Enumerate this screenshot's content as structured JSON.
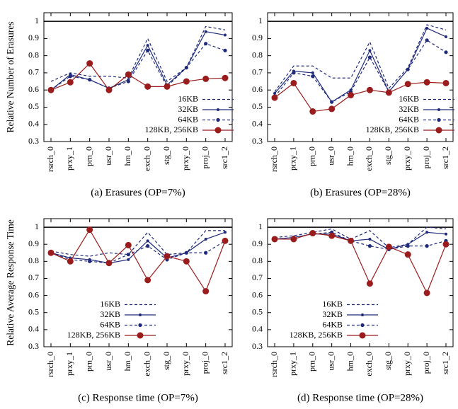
{
  "chart_data": [
    {
      "type": "line",
      "title": "(a)  Erasures (OP=7%)",
      "ylabel": "Relative Number of Erasures",
      "categories": [
        "rsrch_0",
        "prxy_1",
        "prn_0",
        "usr_0",
        "hm_0",
        "exch_0",
        "stg_0",
        "prxy_0",
        "proj_0",
        "src1_2"
      ],
      "series": [
        {
          "name": "16KB",
          "color": "#1f2a7a",
          "line_style": "dashed",
          "marker": "none",
          "values": [
            0.65,
            0.7,
            0.68,
            0.68,
            0.67,
            0.9,
            0.65,
            0.73,
            0.97,
            0.95
          ]
        },
        {
          "name": "32KB",
          "color": "#1f2a7a",
          "line_style": "solid",
          "marker": "small",
          "values": [
            0.6,
            0.69,
            0.66,
            0.61,
            0.66,
            0.86,
            0.63,
            0.73,
            0.94,
            0.92
          ]
        },
        {
          "name": "64KB",
          "color": "#1f2a7a",
          "line_style": "dashed",
          "marker": "medium",
          "values": [
            0.6,
            0.68,
            0.66,
            0.61,
            0.65,
            0.83,
            0.62,
            0.73,
            0.87,
            0.83
          ]
        },
        {
          "name": "128KB, 256KB",
          "color": "#9b1c1c",
          "line_style": "solid",
          "marker": "large",
          "values": [
            0.6,
            0.645,
            0.755,
            0.6,
            0.69,
            0.62,
            0.62,
            0.65,
            0.665,
            0.67
          ]
        }
      ],
      "ylim": [
        0.3,
        1.05
      ],
      "yticks": [
        0.3,
        0.4,
        0.5,
        0.6,
        0.7,
        0.8,
        0.9,
        1
      ],
      "hline": 1,
      "legend": "lower right"
    },
    {
      "type": "line",
      "title": "(b)  Erasures (OP=28%)",
      "categories": [
        "rsrch_0",
        "prxy_1",
        "prn_0",
        "usr_0",
        "hm_0",
        "exch_0",
        "stg_0",
        "prxy_0",
        "proj_0",
        "src1_2"
      ],
      "series": [
        {
          "name": "16KB",
          "color": "#1f2a7a",
          "line_style": "dashed",
          "marker": "none",
          "values": [
            0.59,
            0.74,
            0.74,
            0.67,
            0.67,
            0.88,
            0.61,
            0.73,
            0.98,
            0.95
          ]
        },
        {
          "name": "32KB",
          "color": "#1f2a7a",
          "line_style": "solid",
          "marker": "small",
          "values": [
            0.58,
            0.71,
            0.7,
            0.53,
            0.6,
            0.83,
            0.59,
            0.72,
            0.96,
            0.91
          ]
        },
        {
          "name": "64KB",
          "color": "#1f2a7a",
          "line_style": "dashed",
          "marker": "medium",
          "values": [
            0.56,
            0.7,
            0.68,
            0.53,
            0.59,
            0.79,
            0.59,
            0.72,
            0.89,
            0.82
          ]
        },
        {
          "name": "128KB, 256KB",
          "color": "#9b1c1c",
          "line_style": "solid",
          "marker": "large",
          "values": [
            0.555,
            0.64,
            0.475,
            0.49,
            0.57,
            0.6,
            0.585,
            0.635,
            0.645,
            0.64
          ]
        }
      ],
      "ylim": [
        0.3,
        1.05
      ],
      "yticks": [
        0.3,
        0.4,
        0.5,
        0.6,
        0.7,
        0.8,
        0.9,
        1
      ],
      "hline": 1,
      "legend": "lower right"
    },
    {
      "type": "line",
      "title": "(c)  Response time (OP=7%)",
      "ylabel": "Relative Average Response Time",
      "categories": [
        "rsrch_0",
        "prxy_1",
        "prn_0",
        "usr_0",
        "hm_0",
        "exch_0",
        "stg_0",
        "prxy_0",
        "proj_0",
        "src1_2"
      ],
      "series": [
        {
          "name": "16KB",
          "color": "#1f2a7a",
          "line_style": "dashed",
          "marker": "none",
          "values": [
            0.86,
            0.84,
            0.83,
            0.85,
            0.84,
            0.97,
            0.84,
            0.85,
            0.98,
            0.98
          ]
        },
        {
          "name": "32KB",
          "color": "#1f2a7a",
          "line_style": "solid",
          "marker": "small",
          "values": [
            0.85,
            0.82,
            0.81,
            0.79,
            0.81,
            0.92,
            0.82,
            0.85,
            0.93,
            0.97
          ]
        },
        {
          "name": "64KB",
          "color": "#1f2a7a",
          "line_style": "dashed",
          "marker": "medium",
          "values": [
            0.85,
            0.81,
            0.8,
            0.79,
            0.84,
            0.89,
            0.81,
            0.85,
            0.85,
            0.92
          ]
        },
        {
          "name": "128KB, 256KB",
          "color": "#9b1c1c",
          "line_style": "solid",
          "marker": "large",
          "values": [
            0.85,
            0.8,
            0.985,
            0.79,
            0.895,
            0.69,
            0.83,
            0.8,
            0.625,
            0.92
          ]
        }
      ],
      "ylim": [
        0.3,
        1.05
      ],
      "yticks": [
        0.3,
        0.4,
        0.5,
        0.6,
        0.7,
        0.8,
        0.9,
        1
      ],
      "hline": 1,
      "legend": "lower center"
    },
    {
      "type": "line",
      "title": "(d)  Response time (OP=28%)",
      "categories": [
        "rsrch_0",
        "prxy_1",
        "prn_0",
        "usr_0",
        "hm_0",
        "exch_0",
        "stg_0",
        "prxy_0",
        "proj_0",
        "src1_2"
      ],
      "series": [
        {
          "name": "16KB",
          "color": "#1f2a7a",
          "line_style": "dashed",
          "marker": "none",
          "values": [
            0.94,
            0.95,
            0.97,
            0.99,
            0.93,
            0.98,
            0.88,
            0.9,
            1.0,
            0.99
          ]
        },
        {
          "name": "32KB",
          "color": "#1f2a7a",
          "line_style": "solid",
          "marker": "small",
          "values": [
            0.93,
            0.94,
            0.96,
            0.96,
            0.92,
            0.93,
            0.87,
            0.9,
            0.97,
            0.96
          ]
        },
        {
          "name": "64KB",
          "color": "#1f2a7a",
          "line_style": "dashed",
          "marker": "medium",
          "values": [
            0.93,
            0.94,
            0.96,
            0.97,
            0.92,
            0.89,
            0.87,
            0.89,
            0.89,
            0.92
          ]
        },
        {
          "name": "128KB, 256KB",
          "color": "#9b1c1c",
          "line_style": "solid",
          "marker": "large",
          "values": [
            0.93,
            0.93,
            0.965,
            0.95,
            0.92,
            0.67,
            0.885,
            0.84,
            0.615,
            0.9
          ]
        }
      ],
      "ylim": [
        0.3,
        1.05
      ],
      "yticks": [
        0.3,
        0.4,
        0.5,
        0.6,
        0.7,
        0.8,
        0.9,
        1
      ],
      "hline": 1,
      "legend": "lower center"
    }
  ]
}
